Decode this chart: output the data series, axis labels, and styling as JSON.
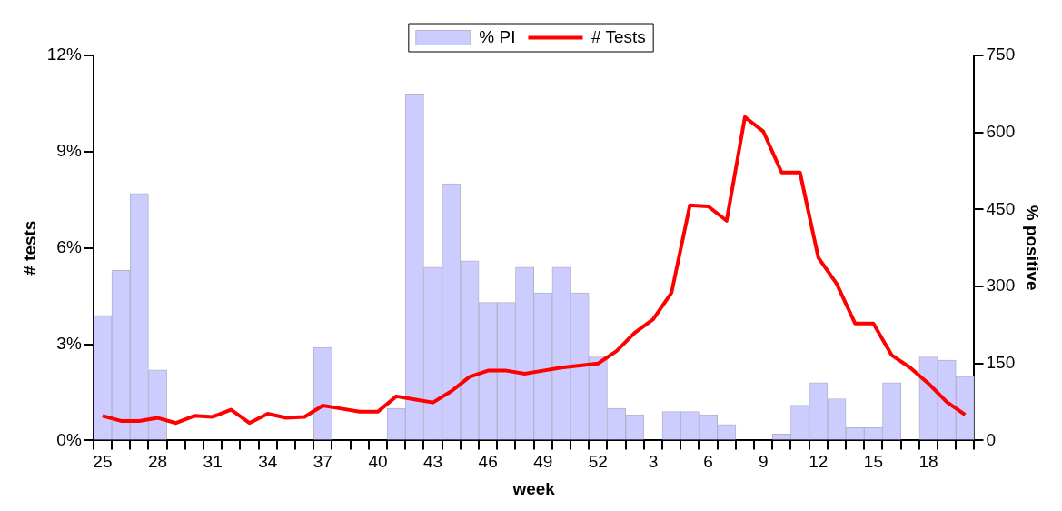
{
  "chart_data": {
    "type": "bar",
    "xlabel": "week",
    "ylabel": "# tests",
    "y2label": "% positive",
    "categories": [
      "25",
      null,
      null,
      "28",
      null,
      null,
      "31",
      null,
      null,
      "34",
      null,
      null,
      "37",
      null,
      null,
      "40",
      null,
      null,
      "43",
      null,
      null,
      "46",
      null,
      null,
      "49",
      null,
      null,
      "52",
      null,
      null,
      "3",
      null,
      null,
      "6",
      null,
      null,
      "9",
      null,
      null,
      "12",
      null,
      null,
      "15",
      null,
      null,
      "18",
      null,
      null
    ],
    "series": [
      {
        "name": "% PI",
        "color": "#ccccff",
        "values": [
          3.9,
          5.3,
          7.7,
          2.2,
          0,
          0,
          0,
          0,
          0,
          0,
          0,
          0,
          2.9,
          0,
          0,
          0,
          1.0,
          10.8,
          5.4,
          8.0,
          5.6,
          4.3,
          4.3,
          5.4,
          4.6,
          5.4,
          4.6,
          2.6,
          1.0,
          0.8,
          0,
          0.9,
          0.9,
          0.8,
          0.5,
          0,
          0,
          0.2,
          1.1,
          1.8,
          1.3,
          0.4,
          0.4,
          1.8,
          0,
          2.6,
          2.5,
          2.0
        ]
      },
      {
        "name": "# Tests",
        "type": "line",
        "axis": "y2",
        "color": "#ff0000",
        "values": [
          48,
          38,
          38,
          44,
          34,
          48,
          46,
          60,
          34,
          52,
          44,
          46,
          68,
          62,
          56,
          56,
          86,
          80,
          74,
          96,
          124,
          136,
          136,
          130,
          136,
          142,
          146,
          150,
          174,
          210,
          236,
          288,
          458,
          456,
          428,
          630,
          602,
          522,
          522,
          356,
          305,
          228,
          228,
          166,
          142,
          111,
          75,
          50
        ]
      }
    ],
    "ylim": [
      0,
      12
    ],
    "yticks": [
      {
        "value": 0,
        "label": "0%"
      },
      {
        "value": 3,
        "label": "3%"
      },
      {
        "value": 6,
        "label": "6%"
      },
      {
        "value": 9,
        "label": "9%"
      },
      {
        "value": 12,
        "label": "12%"
      }
    ],
    "y2lim": [
      0,
      750
    ],
    "y2ticks": [
      0,
      150,
      300,
      450,
      600,
      750
    ],
    "grid": false,
    "legend": "top",
    "marker": "none",
    "line_style": "solid"
  }
}
